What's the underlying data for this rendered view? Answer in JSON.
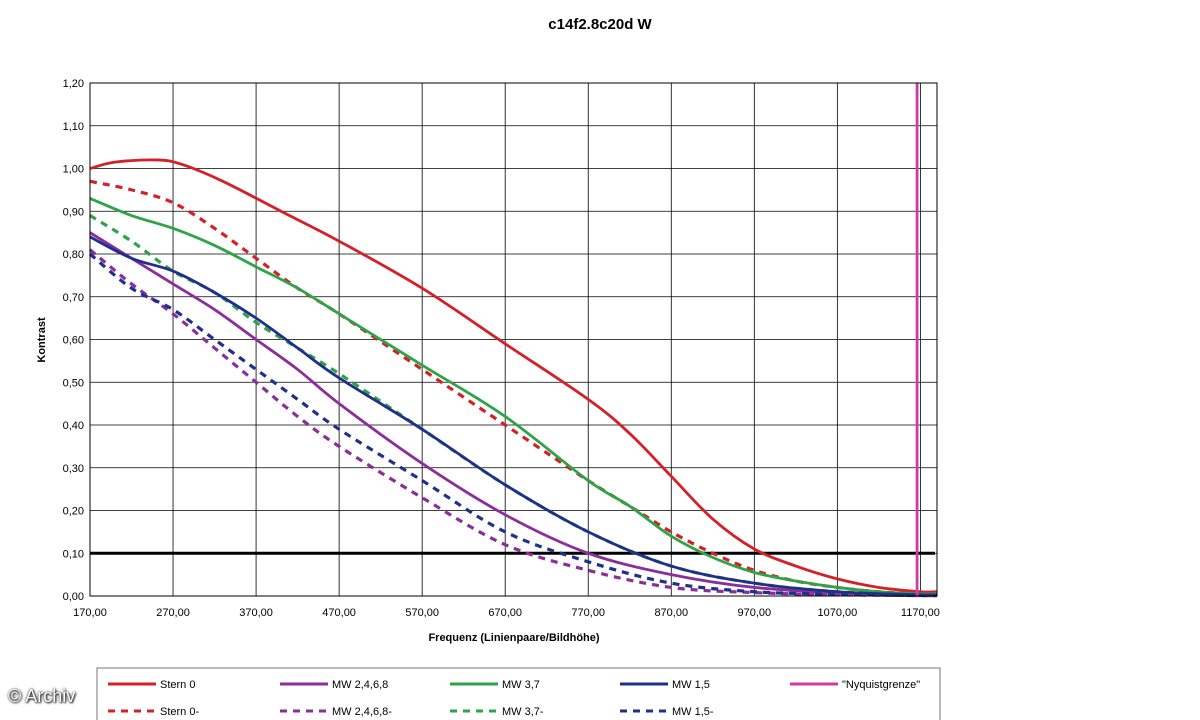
{
  "watermark": "© Archiv",
  "chart_data": {
    "type": "line",
    "title": "c14f2.8c20d W",
    "xlabel": "Frequenz (Linienpaare/Bildhöhe)",
    "ylabel": "Kontrast",
    "xlim": [
      170,
      1190
    ],
    "ylim": [
      0,
      1.2
    ],
    "x_ticks": [
      "170,00",
      "270,00",
      "370,00",
      "470,00",
      "570,00",
      "670,00",
      "770,00",
      "870,00",
      "970,00",
      "1070,00",
      "1170,00"
    ],
    "y_ticks": [
      "0,00",
      "0,10",
      "0,20",
      "0,30",
      "0,40",
      "0,50",
      "0,60",
      "0,70",
      "0,80",
      "0,90",
      "1,00",
      "1,10",
      "1,20"
    ],
    "grid": true,
    "legend_position": "bottom",
    "reference_lines": [
      {
        "axis": "y",
        "value": 0.1,
        "color": "#000000"
      }
    ],
    "series": [
      {
        "name": "Stern 0",
        "color": "#d62027",
        "dash": false,
        "x": [
          170,
          200,
          250,
          280,
          330,
          400,
          470,
          570,
          670,
          770,
          820,
          870,
          920,
          970,
          1020,
          1070,
          1120,
          1170,
          1190
        ],
        "y": [
          1.0,
          1.015,
          1.02,
          1.01,
          0.97,
          0.9,
          0.83,
          0.72,
          0.59,
          0.46,
          0.38,
          0.28,
          0.18,
          0.11,
          0.07,
          0.04,
          0.02,
          0.01,
          0.01
        ]
      },
      {
        "name": "Stern 0-",
        "color": "#d62027",
        "dash": true,
        "x": [
          170,
          220,
          270,
          320,
          370,
          420,
          470,
          570,
          670,
          770,
          820,
          870,
          920,
          970,
          1020,
          1070,
          1120,
          1170,
          1190
        ],
        "y": [
          0.97,
          0.95,
          0.92,
          0.86,
          0.79,
          0.72,
          0.66,
          0.53,
          0.4,
          0.27,
          0.21,
          0.15,
          0.1,
          0.06,
          0.035,
          0.02,
          0.01,
          0.005,
          0.005
        ]
      },
      {
        "name": "MW 2,4,6,8",
        "color": "#8b2e9a",
        "dash": false,
        "x": [
          170,
          220,
          270,
          320,
          370,
          420,
          470,
          570,
          670,
          770,
          870,
          970,
          1070,
          1170,
          1190
        ],
        "y": [
          0.85,
          0.79,
          0.73,
          0.67,
          0.6,
          0.53,
          0.45,
          0.31,
          0.19,
          0.1,
          0.05,
          0.02,
          0.008,
          0.003,
          0.003
        ]
      },
      {
        "name": "MW 2,4,6,8-",
        "color": "#8b2e9a",
        "dash": true,
        "x": [
          170,
          220,
          270,
          320,
          370,
          420,
          470,
          570,
          670,
          770,
          870,
          970,
          1070,
          1170,
          1190
        ],
        "y": [
          0.81,
          0.73,
          0.66,
          0.58,
          0.5,
          0.42,
          0.35,
          0.23,
          0.12,
          0.06,
          0.02,
          0.008,
          0.003,
          0.001,
          0.001
        ]
      },
      {
        "name": "MW 3,7",
        "color": "#2ea347",
        "dash": false,
        "x": [
          170,
          220,
          270,
          320,
          370,
          420,
          470,
          570,
          670,
          770,
          820,
          870,
          920,
          970,
          1020,
          1070,
          1120,
          1170,
          1190
        ],
        "y": [
          0.93,
          0.89,
          0.86,
          0.82,
          0.77,
          0.72,
          0.66,
          0.54,
          0.42,
          0.27,
          0.21,
          0.14,
          0.09,
          0.055,
          0.035,
          0.02,
          0.01,
          0.005,
          0.005
        ]
      },
      {
        "name": "MW 3,7-",
        "color": "#2ea347",
        "dash": true,
        "x": [
          170,
          220,
          270,
          320,
          370,
          420,
          470,
          570,
          670,
          770,
          870,
          970,
          1070,
          1170,
          1190
        ],
        "y": [
          0.89,
          0.83,
          0.76,
          0.71,
          0.64,
          0.58,
          0.52,
          0.39,
          0.26,
          0.15,
          0.07,
          0.03,
          0.01,
          0.003,
          0.003
        ]
      },
      {
        "name": "MW 1,5",
        "color": "#1f2f8c",
        "dash": false,
        "x": [
          170,
          220,
          270,
          320,
          370,
          420,
          470,
          570,
          670,
          770,
          870,
          970,
          1070,
          1170,
          1190
        ],
        "y": [
          0.84,
          0.79,
          0.76,
          0.71,
          0.65,
          0.58,
          0.51,
          0.39,
          0.26,
          0.15,
          0.07,
          0.03,
          0.01,
          0.003,
          0.003
        ]
      },
      {
        "name": "MW 1,5-",
        "color": "#1f2f8c",
        "dash": true,
        "x": [
          170,
          220,
          270,
          320,
          370,
          420,
          470,
          570,
          670,
          770,
          870,
          970,
          1070,
          1170,
          1190
        ],
        "y": [
          0.8,
          0.72,
          0.67,
          0.6,
          0.53,
          0.46,
          0.39,
          0.27,
          0.15,
          0.08,
          0.03,
          0.01,
          0.004,
          0.001,
          0.001
        ]
      },
      {
        "name": "\"Nyquistgrenze\"",
        "color": "#d13aa6",
        "dash": false,
        "x": [
          1166,
          1166
        ],
        "y": [
          0,
          1.2
        ]
      }
    ]
  }
}
